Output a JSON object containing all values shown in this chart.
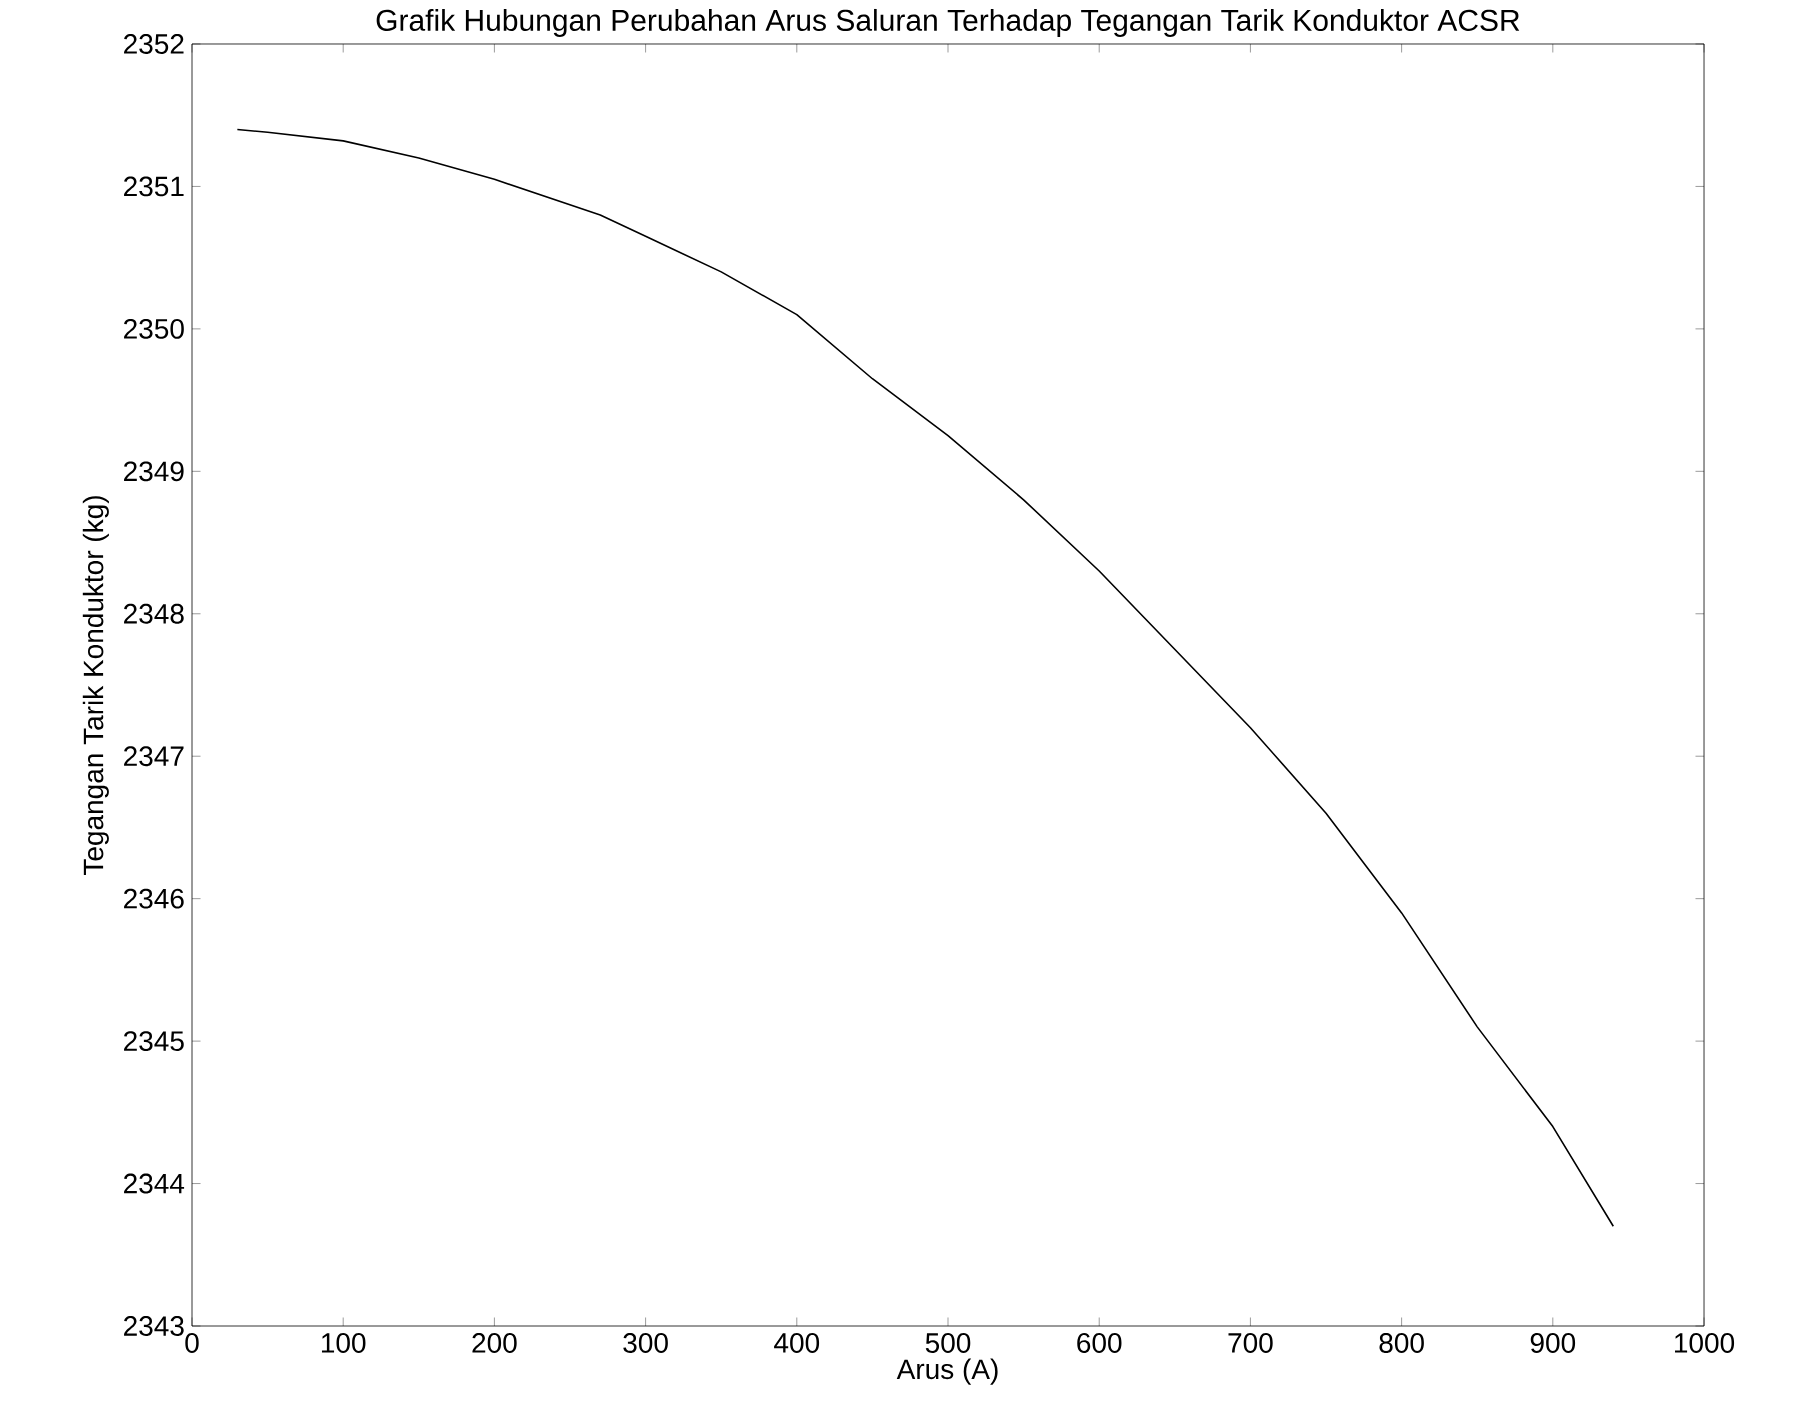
{
  "chart_data": {
    "type": "line",
    "title": "Grafik Hubungan Perubahan Arus Saluran Terhadap Tegangan Tarik Konduktor ACSR",
    "xlabel": "Arus (A)",
    "ylabel": "Tegangan Tarik Konduktor (kg)",
    "x": [
      30,
      50,
      100,
      150,
      200,
      270,
      300,
      350,
      400,
      450,
      500,
      550,
      600,
      650,
      700,
      750,
      800,
      850,
      900,
      940
    ],
    "series": [
      {
        "color": "#000000",
        "values": [
          2351.4,
          2351.38,
          2351.32,
          2351.2,
          2351.05,
          2350.8,
          2350.65,
          2350.4,
          2350.1,
          2349.65,
          2349.25,
          2348.8,
          2348.3,
          2347.75,
          2347.2,
          2346.6,
          2345.9,
          2345.1,
          2344.4,
          2343.7
        ]
      }
    ],
    "xlim": [
      0,
      1000
    ],
    "ylim": [
      2343,
      2352
    ],
    "xticks": [
      0,
      100,
      200,
      300,
      400,
      500,
      600,
      700,
      800,
      900,
      1000
    ],
    "yticks": [
      2343,
      2344,
      2345,
      2346,
      2347,
      2348,
      2349,
      2350,
      2351,
      2352
    ],
    "grid": false,
    "marker": "none",
    "line_style": "solid"
  }
}
